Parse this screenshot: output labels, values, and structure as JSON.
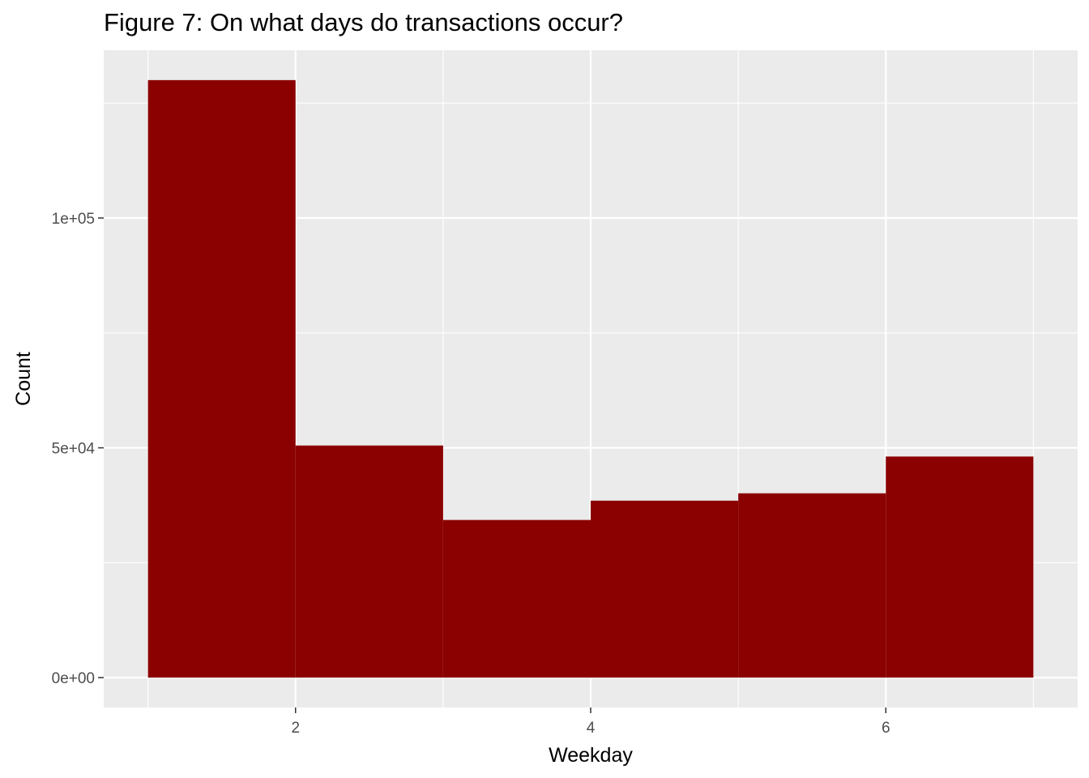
{
  "chart_data": {
    "type": "bar",
    "title": "Figure 7: On what days do transactions occur?",
    "xlabel": "Weekday",
    "ylabel": "Count",
    "x_ticks": [
      2,
      4,
      6
    ],
    "y_ticks": [
      0,
      50000,
      100000
    ],
    "y_tick_labels": [
      "0e+00",
      "5e+04",
      "1e+05"
    ],
    "bins": [
      {
        "x0": 1,
        "x1": 2,
        "value": 130000
      },
      {
        "x0": 2,
        "x1": 3,
        "value": 50500
      },
      {
        "x0": 3,
        "x1": 4,
        "value": 34300
      },
      {
        "x0": 4,
        "x1": 5,
        "value": 38500
      },
      {
        "x0": 5,
        "x1": 6,
        "value": 40100
      },
      {
        "x0": 6,
        "x1": 7,
        "value": 48100
      }
    ],
    "xlim": [
      0.7,
      7.3
    ],
    "ylim": [
      -6500,
      136500
    ],
    "grid": true,
    "colors": {
      "bar": "#8b0000",
      "panel": "#ebebeb",
      "grid": "#ffffff"
    }
  }
}
